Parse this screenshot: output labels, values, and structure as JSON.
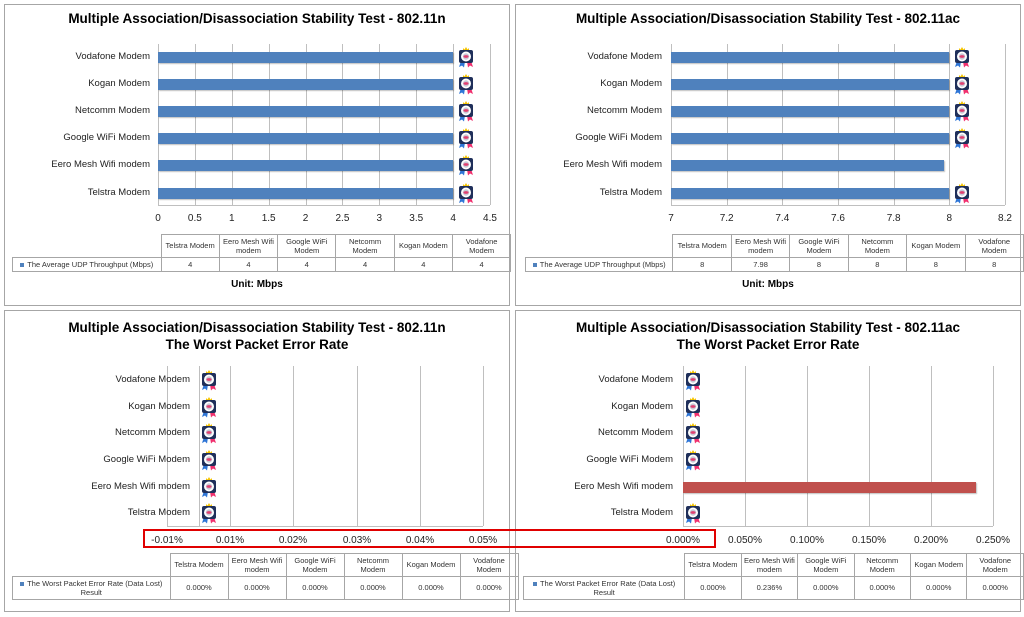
{
  "chart_data": [
    {
      "type": "bar",
      "orientation": "horizontal",
      "title": "Multiple Association/Disassociation Stability Test - 802.11n",
      "categories": [
        "Vodafone Modem",
        "Kogan Modem",
        "Netcomm Modem",
        "Google WiFi Modem",
        "Eero Mesh Wifi modem",
        "Telstra Modem"
      ],
      "values": [
        4,
        4,
        4,
        4,
        4,
        4
      ],
      "xlim": [
        0,
        4.5
      ],
      "xticks": [
        "0",
        "0.5",
        "1",
        "1.5",
        "2",
        "2.5",
        "3",
        "3.5",
        "4",
        "4.5"
      ],
      "grid": true,
      "bar_color": "#4f81bd",
      "table": {
        "headers": [
          "Telstra Modem",
          "Eero Mesh Wifi modem",
          "Google WiFi Modem",
          "Netcomm Modem",
          "Kogan Modem",
          "Vodafone Modem"
        ],
        "series_label": "The Average UDP Throughput (Mbps)",
        "values": [
          "4",
          "4",
          "4",
          "4",
          "4",
          "4"
        ]
      },
      "unit_label": "Unit: Mbps"
    },
    {
      "type": "bar",
      "orientation": "horizontal",
      "title": "Multiple Association/Disassociation Stability Test - 802.11ac",
      "categories": [
        "Vodafone Modem",
        "Kogan Modem",
        "Netcomm Modem",
        "Google WiFi Modem",
        "Eero Mesh Wifi modem",
        "Telstra Modem"
      ],
      "values": [
        8,
        8,
        8,
        8,
        7.98,
        8
      ],
      "xlim": [
        7,
        8.2
      ],
      "xticks": [
        "7",
        "7.2",
        "7.4",
        "7.6",
        "7.8",
        "8",
        "8.2"
      ],
      "grid": true,
      "bar_color": "#4f81bd",
      "badges": [
        true,
        true,
        true,
        true,
        false,
        true
      ],
      "table": {
        "headers": [
          "Telstra Modem",
          "Eero Mesh Wifi modem",
          "Google WiFi Modem",
          "Netcomm Modem",
          "Kogan Modem",
          "Vodafone Modem"
        ],
        "series_label": "The Average UDP Throughput (Mbps)",
        "values": [
          "8",
          "7.98",
          "8",
          "8",
          "8",
          "8"
        ]
      },
      "unit_label": "Unit: Mbps"
    },
    {
      "type": "bar",
      "orientation": "horizontal",
      "title": "Multiple Association/Disassociation Stability Test - 802.11n",
      "subtitle": "The Worst Packet Error Rate",
      "categories": [
        "Vodafone Modem",
        "Kogan Modem",
        "Netcomm Modem",
        "Google WiFi Modem",
        "Eero Mesh Wifi modem",
        "Telstra Modem"
      ],
      "values": [
        0,
        0,
        0,
        0,
        0,
        0
      ],
      "xticks": [
        "-0.01%",
        "0.01%",
        "0.02%",
        "0.03%",
        "0.04%",
        "0.05%"
      ],
      "grid": true,
      "bar_color": "#4f81bd",
      "table": {
        "headers": [
          "Telstra Modem",
          "Eero Mesh Wifi modem",
          "Google WiFi Modem",
          "Netcomm Modem",
          "Kogan Modem",
          "Vodafone Modem"
        ],
        "series_label": "The Worst Packet Error Rate (Data Lost) Result",
        "values": [
          "0.000%",
          "0.000%",
          "0.000%",
          "0.000%",
          "0.000%",
          "0.000%"
        ]
      }
    },
    {
      "type": "bar",
      "orientation": "horizontal",
      "title": "Multiple Association/Disassociation Stability Test - 802.11ac",
      "subtitle": "The Worst Packet Error Rate",
      "categories": [
        "Vodafone Modem",
        "Kogan Modem",
        "Netcomm Modem",
        "Google WiFi Modem",
        "Eero Mesh Wifi modem",
        "Telstra Modem"
      ],
      "values": [
        0,
        0,
        0,
        0,
        0.236,
        0
      ],
      "xlim": [
        0,
        0.25
      ],
      "xticks": [
        "0.000%",
        "0.050%",
        "0.100%",
        "0.150%",
        "0.200%",
        "0.250%"
      ],
      "grid": true,
      "bar_color": "#c0504d",
      "badges": [
        true,
        true,
        true,
        true,
        false,
        true
      ],
      "table": {
        "headers": [
          "Telstra Modem",
          "Eero Mesh Wifi modem",
          "Google WiFi Modem",
          "Netcomm Modem",
          "Kogan Modem",
          "Vodafone Modem"
        ],
        "series_label": "The Worst Packet Error Rate (Data Lost) Result",
        "values": [
          "0.000%",
          "0.236%",
          "0.000%",
          "0.000%",
          "0.000%",
          "0.000%"
        ]
      }
    }
  ],
  "highlight_color": "#e00000"
}
